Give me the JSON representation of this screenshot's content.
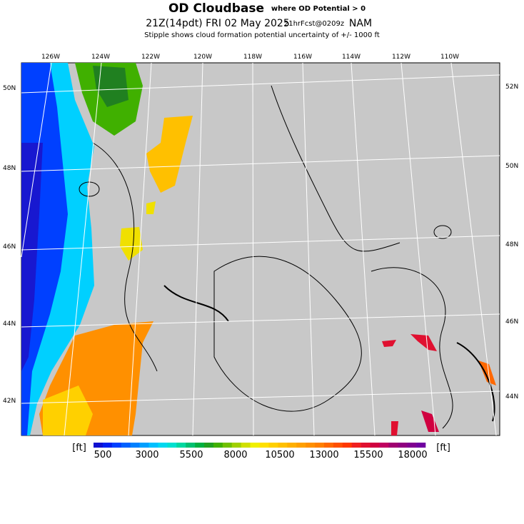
{
  "header": {
    "title": "OD Cloudbase",
    "qualifier": "where OD Potential > 0",
    "valid_time": "21Z(14pdt) FRI 02 May 2025",
    "forecast": "21hrFcst@0209z",
    "model": "NAM",
    "subtitle": "Stipple shows cloud formation potential uncertainty of +/-  1000 ft"
  },
  "map": {
    "longitude_labels": [
      "126W",
      "124W",
      "122W",
      "120W",
      "118W",
      "116W",
      "114W",
      "112W",
      "110W"
    ],
    "left_latitude_labels": [
      "50N",
      "48N",
      "46N",
      "44N",
      "42N"
    ],
    "right_latitude_labels": [
      "52N",
      "50N",
      "48N",
      "46N",
      "44N"
    ]
  },
  "colorbar": {
    "unit_left": "[ft]",
    "unit_right": "[ft]",
    "labels": [
      "500",
      "3000",
      "5500",
      "8000",
      "10500",
      "13000",
      "15500",
      "18000"
    ],
    "colors": [
      "#1010d0",
      "#0020f0",
      "#0040ff",
      "#0060ff",
      "#0080ff",
      "#00a0ff",
      "#00c0ff",
      "#00d8f0",
      "#00e0d0",
      "#00d8a0",
      "#00c070",
      "#00b040",
      "#20a020",
      "#40b000",
      "#70c000",
      "#a0d000",
      "#d0e000",
      "#f0f000",
      "#ffe000",
      "#ffd000",
      "#ffc000",
      "#ffb000",
      "#ffa000",
      "#ff9000",
      "#ff8000",
      "#ff6800",
      "#ff5000",
      "#ff3800",
      "#f02020",
      "#e01030",
      "#d00040",
      "#c00060",
      "#a00070",
      "#900080",
      "#800090",
      "#7000a0"
    ]
  }
}
